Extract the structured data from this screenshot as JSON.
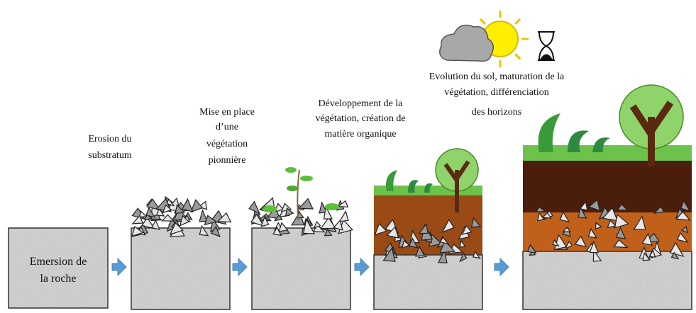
{
  "stages": [
    {
      "lines": [
        "Emersion de",
        "la roche"
      ]
    },
    {
      "lines": [
        "Erosion du",
        "substratum"
      ]
    },
    {
      "lines": [
        "Mise en place",
        "d’une",
        "végétation",
        "pionnière"
      ]
    },
    {
      "lines": [
        "Développement de la",
        "végétation, création de",
        "matière organique"
      ]
    },
    {
      "lines": [
        "Evolution du sol, maturation de la",
        "végétation, différenciation",
        "des horizons"
      ]
    }
  ]
}
